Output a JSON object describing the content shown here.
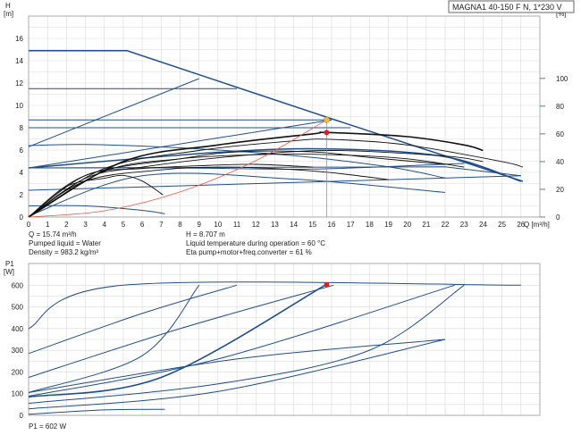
{
  "title_box": "MAGNA1 40-150 F N, 1*230 V",
  "info": {
    "q": "Q = 15.74 m³/h",
    "h": "H = 8.707 m",
    "liquid": "Pumped liquid = Water",
    "temp": "Liquid temperature during operation = 60 °C",
    "density": "Density = 983.2 kg/m³",
    "eta": "Eta pump+motor+freq.converter = 61 %",
    "p1": "P1 = 602 W"
  },
  "colors": {
    "blue": "#1f4e8c",
    "black": "#111111",
    "red": "#e8584a",
    "point_yellow": "#f5b942",
    "point_red": "#e02020",
    "eta_axis": "#2f6b2f",
    "grid": "#d9d9d9"
  },
  "chart_data": [
    {
      "type": "line",
      "name": "head-curves",
      "ylabel": "H\n[m]",
      "y2label": "eta\n[%]",
      "xlabel": "Q [m³/h]",
      "xlim": [
        0,
        27
      ],
      "ylim": [
        0,
        18
      ],
      "y2lim": [
        0,
        145
      ],
      "xticks": [
        0,
        1,
        2,
        3,
        4,
        5,
        6,
        7,
        8,
        9,
        10,
        11,
        12,
        13,
        14,
        15,
        16,
        17,
        18,
        19,
        20,
        21,
        22,
        23,
        24,
        25,
        26
      ],
      "yticks": [
        0,
        2,
        4,
        6,
        8,
        10,
        12,
        14,
        16
      ],
      "y2ticks": [
        0,
        20,
        40,
        60,
        80,
        100
      ],
      "grid": true,
      "operating_point": {
        "x": 15.74,
        "y": 8.707
      },
      "eta_point": {
        "x": 15.74,
        "eta": 61
      },
      "pump_curves": [
        {
          "name": "max-prop",
          "points": [
            [
              0,
              14.9
            ],
            [
              5.2,
              14.9
            ],
            [
              16,
              8.8
            ],
            [
              26.1,
              3.2
            ]
          ]
        },
        {
          "name": "auto-const-3",
          "points": [
            [
              0,
              11.5
            ],
            [
              11,
              11.5
            ]
          ]
        },
        {
          "name": "const-pressure-1",
          "points": [
            [
              0,
              8.7
            ],
            [
              16,
              8.7
            ]
          ]
        },
        {
          "name": "const-pressure-2",
          "points": [
            [
              0,
              8.0
            ],
            [
              17,
              8.0
            ]
          ]
        },
        {
          "name": "prop-rise",
          "points": [
            [
              0,
              6.3
            ],
            [
              9,
              12.4
            ]
          ]
        },
        {
          "name": "prop-rise-2",
          "points": [
            [
              0,
              4.4
            ],
            [
              16,
              8.7
            ]
          ]
        },
        {
          "name": "prop-rise-3",
          "points": [
            [
              0,
              2.4
            ],
            [
              26,
              3.7
            ]
          ]
        },
        {
          "name": "const-curve-mid",
          "points": [
            [
              0,
              6.4
            ],
            [
              3,
              6.5
            ],
            [
              8,
              6.2
            ],
            [
              14,
              5.5
            ],
            [
              19,
              4.5
            ],
            [
              22,
              3.5
            ]
          ]
        },
        {
          "name": "const-curve-low",
          "points": [
            [
              0,
              1.0
            ],
            [
              3,
              1.0
            ],
            [
              6,
              0.6
            ],
            [
              7.2,
              0.3
            ]
          ]
        },
        {
          "name": "const-curve-mid2",
          "points": [
            [
              0,
              4.4
            ],
            [
              8,
              4.4
            ],
            [
              15,
              4.3
            ],
            [
              23,
              4.8
            ]
          ]
        },
        {
          "name": "long-blue",
          "points": [
            [
              0,
              4.4
            ],
            [
              10,
              5.8
            ],
            [
              16,
              6.1
            ],
            [
              22,
              5.4
            ],
            [
              26,
              3.2
            ]
          ]
        },
        {
          "name": "near-flat",
          "points": [
            [
              0,
              4.4
            ],
            [
              22,
              4.5
            ],
            [
              26,
              3.7
            ]
          ]
        },
        {
          "name": "low-curve",
          "points": [
            [
              0,
              0.1
            ],
            [
              6,
              3.7
            ],
            [
              14,
              3.4
            ],
            [
              22,
              2.2
            ]
          ]
        }
      ],
      "system_curve": [
        [
          0,
          0
        ],
        [
          4,
          0.56
        ],
        [
          8,
          2.25
        ],
        [
          12,
          5.05
        ],
        [
          15.74,
          8.707
        ]
      ],
      "eta_curves": [
        {
          "name": "eta-1",
          "points": [
            [
              0,
              0
            ],
            [
              3,
              30
            ],
            [
              8,
              42
            ],
            [
              11,
              47
            ],
            [
              15,
              47
            ],
            [
              18,
              43
            ],
            [
              22,
              38
            ]
          ]
        },
        {
          "name": "eta-2",
          "points": [
            [
              0,
              0
            ],
            [
              3,
              28
            ],
            [
              6,
              36
            ],
            [
              11,
              44
            ],
            [
              16,
              48
            ],
            [
              22,
              44
            ],
            [
              24,
              40
            ]
          ]
        },
        {
          "name": "eta-3",
          "points": [
            [
              0,
              0
            ],
            [
              4,
              35
            ],
            [
              9,
              48
            ],
            [
              14,
              55
            ],
            [
              16,
              56
            ],
            [
              20,
              52
            ],
            [
              25,
              40
            ],
            [
              26.1,
              36
            ]
          ]
        },
        {
          "name": "eta-4",
          "points": [
            [
              0,
              0
            ],
            [
              4,
              33
            ],
            [
              8,
              42
            ],
            [
              12,
              45
            ],
            [
              16,
              45
            ],
            [
              20,
              42
            ],
            [
              23,
              36
            ]
          ]
        },
        {
          "name": "eta-5",
          "points": [
            [
              0,
              0
            ],
            [
              3,
              26
            ],
            [
              7,
              34
            ],
            [
              10,
              36
            ],
            [
              13,
              35
            ],
            [
              16,
              32
            ],
            [
              19,
              27
            ]
          ]
        },
        {
          "name": "eta-6",
          "points": [
            [
              0,
              0
            ],
            [
              3,
              30
            ],
            [
              6,
              35
            ],
            [
              9,
              37
            ],
            [
              12,
              38
            ],
            [
              15,
              36
            ]
          ]
        },
        {
          "name": "eta-7",
          "points": [
            [
              0,
              0
            ],
            [
              2,
              22
            ],
            [
              4,
              28
            ],
            [
              5,
              30
            ],
            [
              6,
              26
            ],
            [
              7.1,
              16
            ]
          ]
        },
        {
          "name": "eta-8",
          "points": [
            [
              0,
              0
            ],
            [
              5,
              40
            ],
            [
              10,
              52
            ],
            [
              15,
              60
            ],
            [
              15.74,
              61
            ],
            [
              20,
              58
            ],
            [
              23,
              52
            ],
            [
              24,
              48
            ]
          ]
        }
      ]
    },
    {
      "type": "line",
      "name": "power-curves",
      "ylabel": "P1\n[W]",
      "xlim": [
        0,
        27
      ],
      "ylim": [
        0,
        700
      ],
      "yticks": [
        0,
        100,
        200,
        300,
        400,
        500,
        600
      ],
      "grid": true,
      "operating_point": {
        "x": 15.74,
        "y": 602
      },
      "curves": [
        {
          "name": "p1-a",
          "points": [
            [
              0,
              400
            ],
            [
              5,
              600
            ],
            [
              26,
              600
            ]
          ]
        },
        {
          "name": "p1-b",
          "points": [
            [
              0,
              285
            ],
            [
              6,
              470
            ],
            [
              11,
              600
            ]
          ]
        },
        {
          "name": "p1-c",
          "points": [
            [
              0,
              175
            ],
            [
              8,
              400
            ],
            [
              16.1,
              600
            ]
          ]
        },
        {
          "name": "p1-d",
          "points": [
            [
              0,
              105
            ],
            [
              6,
              275
            ],
            [
              9,
              600
            ]
          ]
        },
        {
          "name": "p1-e",
          "points": [
            [
              0,
              85
            ],
            [
              7,
              175
            ],
            [
              15.7,
              602
            ]
          ]
        },
        {
          "name": "p1-f",
          "points": [
            [
              0,
              88
            ],
            [
              10,
              260
            ],
            [
              22.5,
              600
            ]
          ]
        },
        {
          "name": "p1-g",
          "points": [
            [
              0,
              105
            ],
            [
              11,
              260
            ],
            [
              22,
              350
            ]
          ]
        },
        {
          "name": "p1-h",
          "points": [
            [
              0,
              55
            ],
            [
              10,
              145
            ],
            [
              18,
              300
            ],
            [
              23,
              600
            ]
          ]
        },
        {
          "name": "p1-i",
          "points": [
            [
              0,
              30
            ],
            [
              10,
              110
            ],
            [
              22,
              350
            ]
          ]
        },
        {
          "name": "p1-j",
          "points": [
            [
              0,
              5
            ],
            [
              4,
              25
            ],
            [
              7.2,
              28
            ]
          ]
        }
      ]
    }
  ]
}
